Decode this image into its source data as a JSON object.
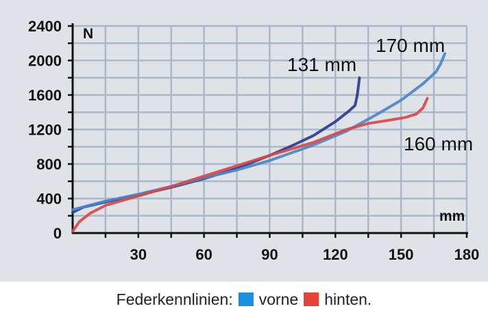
{
  "chart_data": {
    "type": "line",
    "xlabel": "mm",
    "ylabel": "N",
    "xlim": [
      0,
      180
    ],
    "ylim": [
      0,
      2400
    ],
    "x_ticks": [
      30,
      60,
      90,
      120,
      150,
      180
    ],
    "y_ticks": [
      0,
      400,
      800,
      1200,
      1600,
      2000,
      2400
    ],
    "grid": true,
    "annotations": [
      "131 mm",
      "170 mm",
      "160 mm"
    ],
    "series": [
      {
        "color": "#2a3c8f",
        "x": [
          0,
          5,
          15,
          30,
          45,
          60,
          75,
          90,
          100,
          110,
          120,
          126,
          129,
          130,
          131
        ],
        "y": [
          240,
          300,
          360,
          440,
          530,
          630,
          750,
          900,
          1010,
          1130,
          1290,
          1410,
          1480,
          1600,
          1800
        ]
      },
      {
        "color": "#4a86c8",
        "x": [
          0,
          15,
          30,
          45,
          60,
          75,
          90,
          110,
          125,
          140,
          150,
          160,
          166,
          168,
          170
        ],
        "y": [
          270,
          370,
          450,
          540,
          640,
          730,
          840,
          1020,
          1180,
          1390,
          1540,
          1730,
          1870,
          1960,
          2080
        ]
      },
      {
        "color": "#d94848",
        "x": [
          0,
          3,
          8,
          15,
          30,
          45,
          60,
          75,
          90,
          110,
          125,
          135,
          145,
          152,
          157,
          160,
          162
        ],
        "y": [
          20,
          130,
          230,
          320,
          430,
          540,
          660,
          780,
          900,
          1050,
          1200,
          1270,
          1310,
          1340,
          1380,
          1450,
          1560
        ]
      }
    ]
  },
  "legend": {
    "label": "Federkennlinien:",
    "items": [
      {
        "name": "vorne",
        "color": "#1c8ee0"
      },
      {
        "name": "hinten.",
        "color": "#e8403a"
      }
    ]
  }
}
